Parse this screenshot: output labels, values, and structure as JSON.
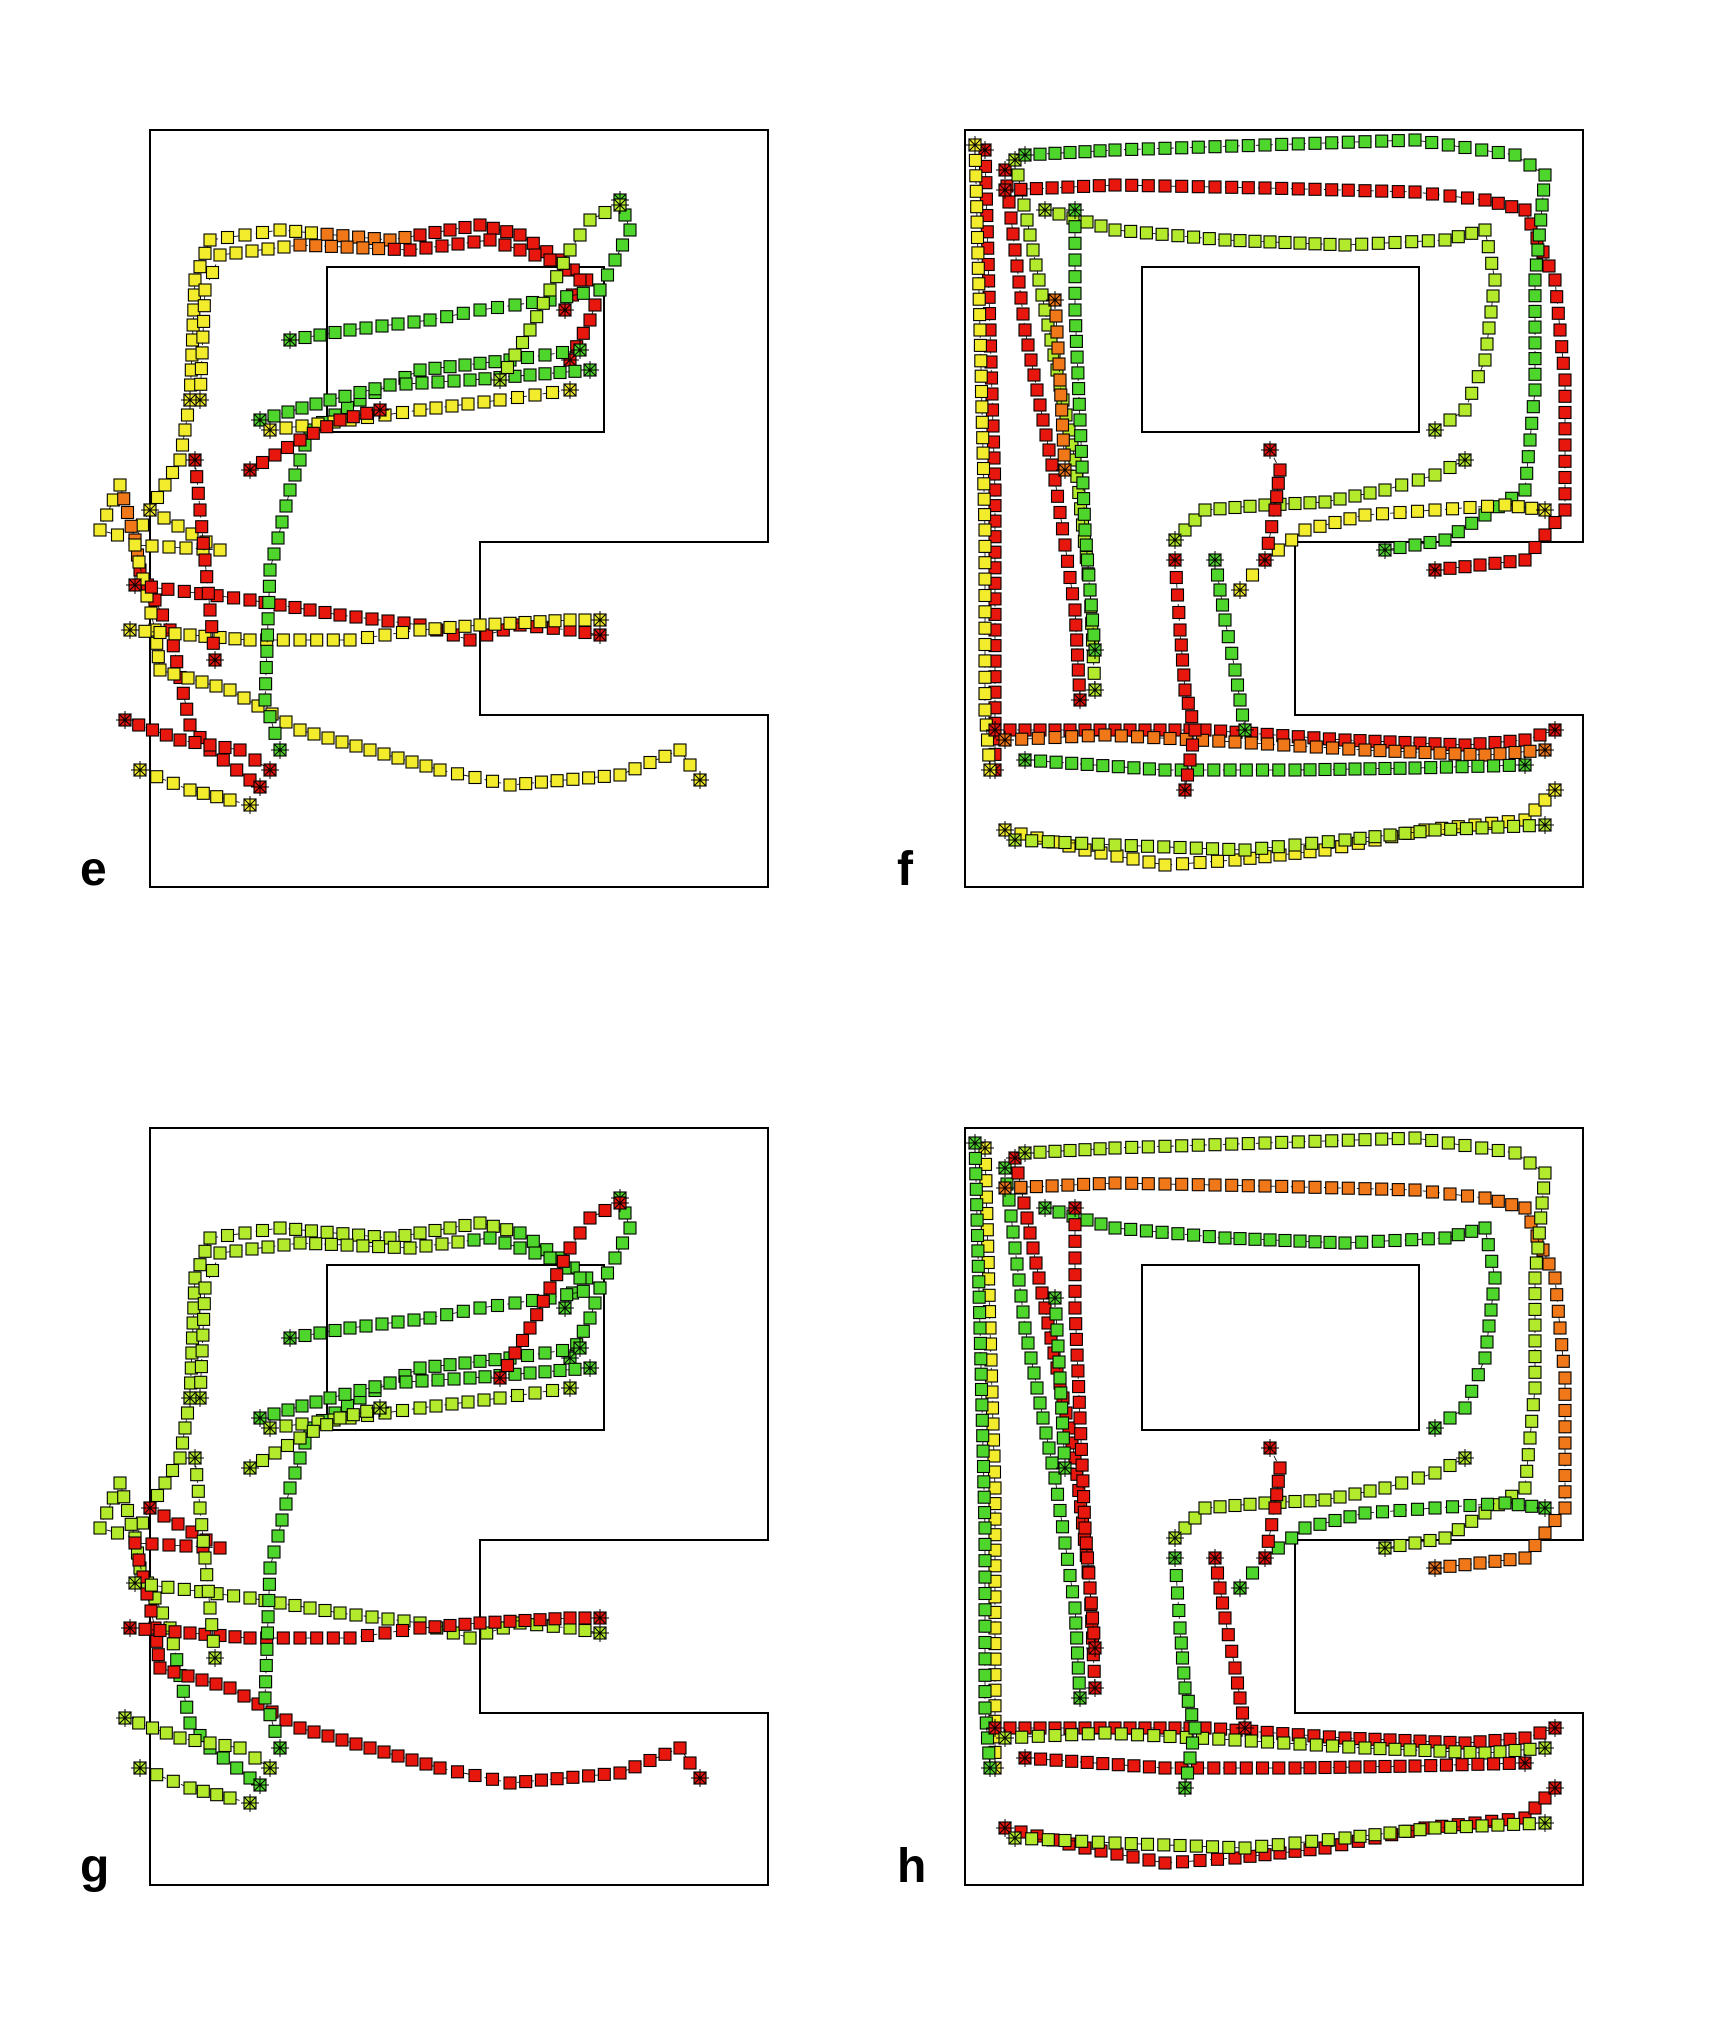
{
  "panels": [
    {
      "label": "e",
      "scheme": "e"
    },
    {
      "label": "f",
      "scheme": "f"
    },
    {
      "label": "g",
      "scheme": "g"
    },
    {
      "label": "h",
      "scheme": "h"
    }
  ],
  "colors": {
    "red": "#e8170d",
    "orange": "#f07818",
    "yellow": "#f2ec2c",
    "lime": "#b4ea2c",
    "green": "#4fd62c"
  }
}
